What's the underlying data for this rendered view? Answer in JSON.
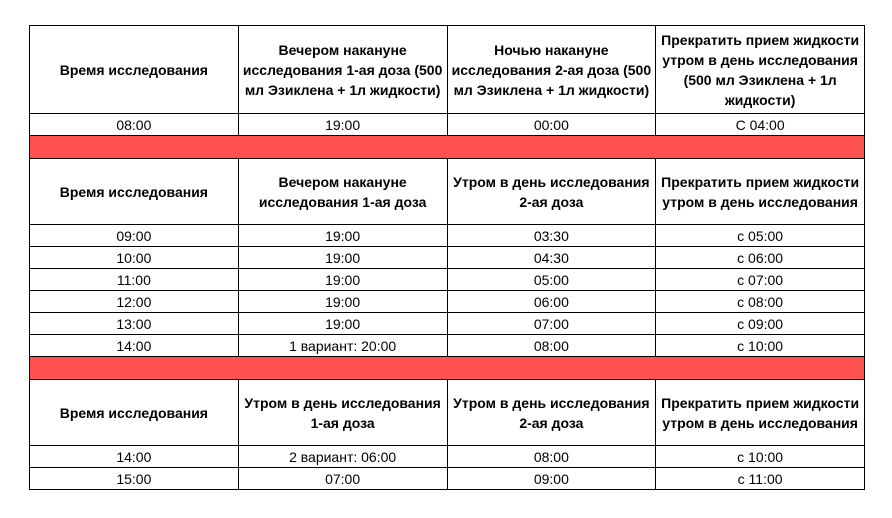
{
  "colors": {
    "separator": "#ff5050"
  },
  "sections": [
    {
      "headers": [
        "Время исследования",
        "Вечером накануне исследования 1-ая доза (500 мл Эзиклена + 1л жидкости)",
        "Ночью накануне исследования 2-ая доза (500 мл Эзиклена + 1л жидкости)",
        "Прекратить прием жидкости утром в день исследования (500 мл Эзиклена + 1л жидкости)"
      ],
      "rows": [
        [
          "08:00",
          "19:00",
          "00:00",
          "С 04:00"
        ]
      ]
    },
    {
      "headers": [
        "Время исследования",
        "Вечером накануне исследования 1-ая доза",
        "Утром в день исследования 2-ая доза",
        "Прекратить прием жидкости утром в день исследования"
      ],
      "rows": [
        [
          "09:00",
          "19:00",
          "03:30",
          "с 05:00"
        ],
        [
          "10:00",
          "19:00",
          "04:30",
          "с 06:00"
        ],
        [
          "11:00",
          "19:00",
          "05:00",
          "с 07:00"
        ],
        [
          "12:00",
          "19:00",
          "06:00",
          "с 08:00"
        ],
        [
          "13:00",
          "19:00",
          "07:00",
          "с 09:00"
        ],
        [
          "14:00",
          "1 вариант: 20:00",
          "08:00",
          "с 10:00"
        ]
      ]
    },
    {
      "headers": [
        "Время исследования",
        "Утром в день исследования 1-ая доза",
        "Утром в день исследования 2-ая доза",
        "Прекратить прием жидкости утром в день исследования"
      ],
      "rows": [
        [
          "14:00",
          "2 вариант: 06:00",
          "08:00",
          "с 10:00"
        ],
        [
          "15:00",
          "07:00",
          "09:00",
          "с 11:00"
        ]
      ]
    }
  ]
}
